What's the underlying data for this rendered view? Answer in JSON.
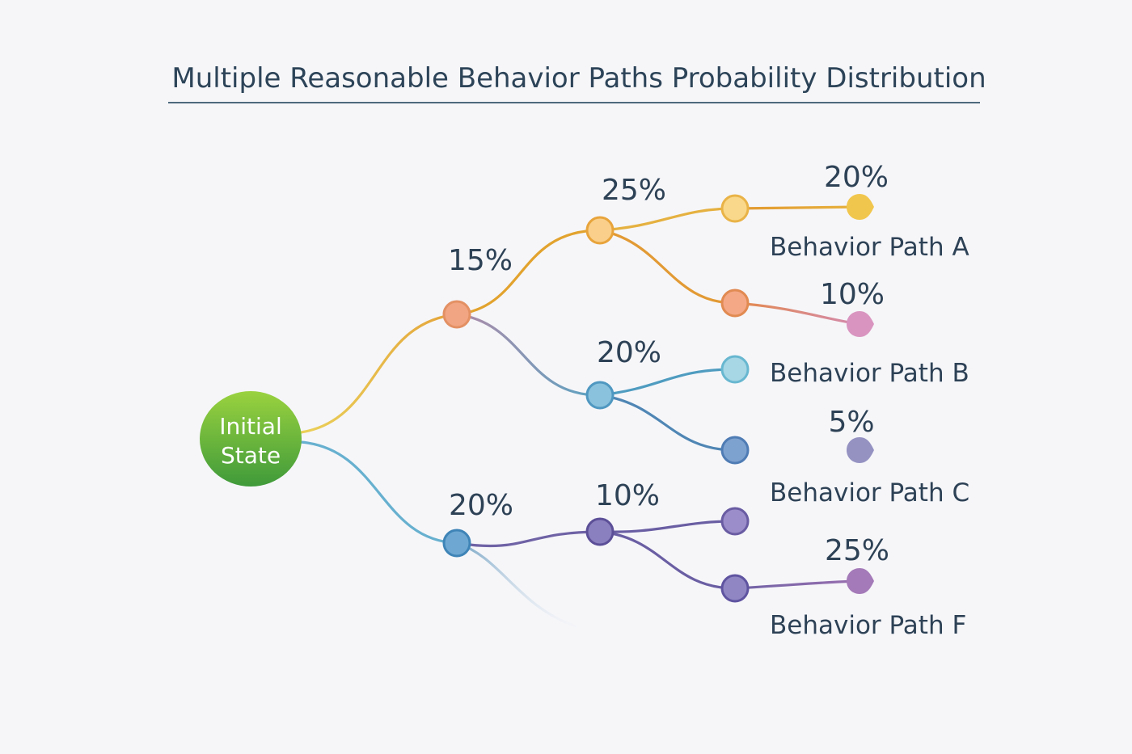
{
  "title": "Multiple Reasonable Behavior Paths Probability Distribution",
  "root": {
    "line1": "Initial",
    "line2": "State"
  },
  "percentages": {
    "p_upper_mid": "15%",
    "p_upper_top": "25%",
    "p_leaf_a": "20%",
    "p_leaf_a2": "10%",
    "p_upper_lower": "20%",
    "p_leaf_c": "5%",
    "p_lower_mid": "20%",
    "p_lower_branch": "10%",
    "p_leaf_f": "25%"
  },
  "path_labels": {
    "a": "Behavior Path A",
    "b": "Behavior Path B",
    "c": "Behavior Path C",
    "f": "Behavior Path F"
  },
  "colors": {
    "title": "#2d4458",
    "rule": "#4f6a7d",
    "yellow": "#e9c64a",
    "orange": "#e3a12f",
    "teal": "#5aa9c3",
    "blue": "#5b8fb7",
    "purple": "#7867a7",
    "green_dark": "#48a23a",
    "green_light": "#8ccf3c"
  }
}
